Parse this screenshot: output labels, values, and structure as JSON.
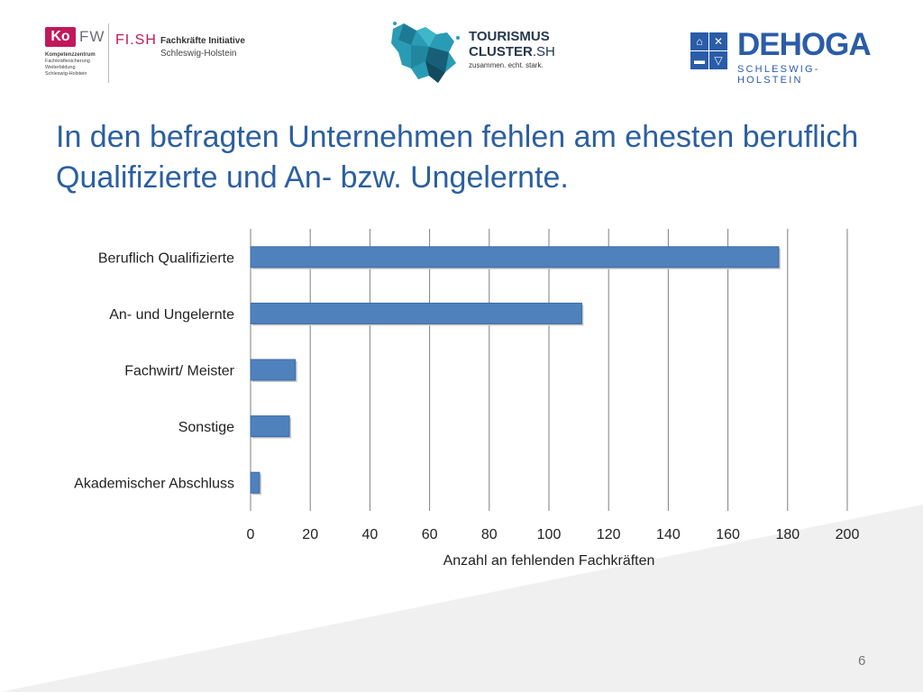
{
  "logos": {
    "kofw": {
      "badge": "Ko",
      "fw": "FW",
      "sub_bold": "Kompetenzzentrum",
      "sub_lines": [
        "Fachkräftesicherung",
        "Weiterbildung",
        "Schleswig-Holstein"
      ],
      "fish": "FI.SH",
      "fish_title": "Fachkräfte Initiative",
      "fish_region": "Schleswig-Holstein"
    },
    "tourism": {
      "line1": "TOURISMUS",
      "line2_bold": "CLUSTER",
      "line2_rest": ".SH",
      "tagline": "zusammen. echt. stark."
    },
    "dehoga": {
      "word": "DEHOGA",
      "region": "SCHLESWIG-HOLSTEIN"
    }
  },
  "slide": {
    "title": "In den befragten Unternehmen fehlen am ehesten beruflich Qualifizierte und An- bzw. Ungelernte.",
    "page_number": "6"
  },
  "colors": {
    "title": "#2b5fa0",
    "bar": "#4f81bd",
    "brand_kofw": "#c2185b",
    "brand_dehoga": "#2b5ca8"
  },
  "chart_data": {
    "type": "bar",
    "orientation": "horizontal",
    "categories": [
      "Beruflich Qualifizierte",
      "An- und Ungelernte",
      "Fachwirt/ Meister",
      "Sonstige",
      "Akademischer Abschluss"
    ],
    "values": [
      177,
      111,
      15,
      13,
      3
    ],
    "xlabel": "Anzahl an fehlenden Fachkräften",
    "xlim": [
      0,
      200
    ],
    "xticks": [
      0,
      20,
      40,
      60,
      80,
      100,
      120,
      140,
      160,
      180,
      200
    ],
    "grid": "vertical",
    "legend": "none"
  }
}
